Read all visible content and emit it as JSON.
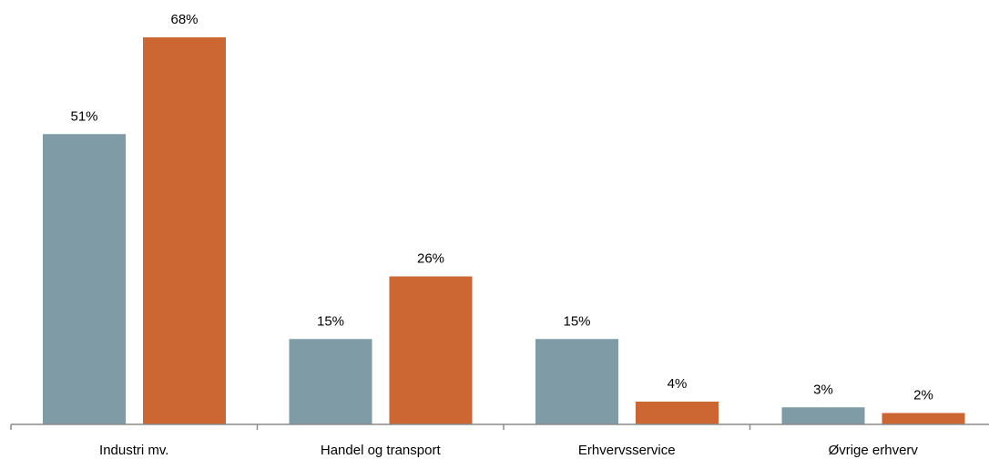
{
  "chart_data": {
    "type": "bar",
    "categories": [
      "Industri mv.",
      "Handel og transport",
      "Erhvervsservice",
      "Øvrige erhverv"
    ],
    "series": [
      {
        "values": [
          51,
          15,
          15,
          3
        ],
        "labels": [
          "51%",
          "15%",
          "15%",
          "3%"
        ],
        "color": "#7F9BA6"
      },
      {
        "values": [
          68,
          26,
          4,
          2
        ],
        "labels": [
          "68%",
          "26%",
          "4%",
          "2%"
        ],
        "color": "#CC6633"
      }
    ],
    "title": "",
    "xlabel": "",
    "ylabel": "",
    "ylim": [
      0,
      68
    ],
    "grid": false,
    "legend": "none"
  }
}
